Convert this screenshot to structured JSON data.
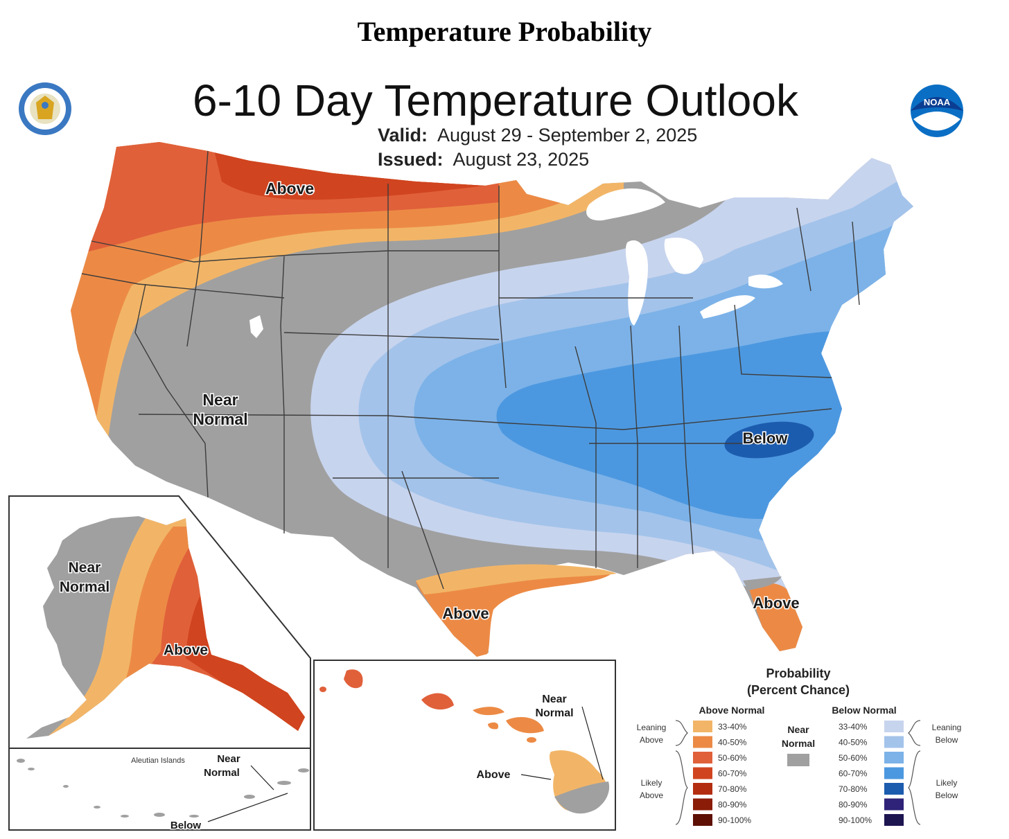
{
  "page_title": "Temperature Probability",
  "map_title": "6-10 Day Temperature Outlook",
  "valid_label": "Valid:",
  "valid_value": "August 29 - September 2, 2025",
  "issued_label": "Issued:",
  "issued_value": "August 23, 2025",
  "logos": {
    "left": "doc-seal-icon",
    "right": "noaa-logo-icon",
    "noaa_text": "NOAA"
  },
  "region_labels": {
    "pacific_northwest": "Above",
    "west": [
      "Near",
      "Normal"
    ],
    "southeast": "Below",
    "texas": "Above",
    "florida": "Above"
  },
  "alaska_labels": {
    "near_normal": [
      "Near",
      "Normal"
    ],
    "above": "Above"
  },
  "aleutian_labels": {
    "title": "Aleutian Islands",
    "near_normal": [
      "Near",
      "Normal"
    ],
    "below": "Below"
  },
  "hawaii_labels": {
    "near_normal": [
      "Near",
      "Normal"
    ],
    "above": "Above"
  },
  "legend": {
    "title_line1": "Probability",
    "title_line2": "(Percent Chance)",
    "above_header": "Above Normal",
    "below_header": "Below Normal",
    "near_header": [
      "Near",
      "Normal"
    ],
    "leaning_above": [
      "Leaning",
      "Above"
    ],
    "likely_above": [
      "Likely",
      "Above"
    ],
    "leaning_below": [
      "Leaning",
      "Below"
    ],
    "likely_below": [
      "Likely",
      "Below"
    ],
    "near_color": "#a0a0a0",
    "above": [
      {
        "range": "33-40%",
        "color": "#f2b567"
      },
      {
        "range": "40-50%",
        "color": "#ec8a45"
      },
      {
        "range": "50-60%",
        "color": "#e0603a"
      },
      {
        "range": "60-70%",
        "color": "#d0441f"
      },
      {
        "range": "70-80%",
        "color": "#b32e10"
      },
      {
        "range": "80-90%",
        "color": "#8a1c08"
      },
      {
        "range": "90-100%",
        "color": "#5e1004"
      }
    ],
    "below": [
      {
        "range": "33-40%",
        "color": "#c7d4ee"
      },
      {
        "range": "40-50%",
        "color": "#a3c3ea"
      },
      {
        "range": "50-60%",
        "color": "#7cb2e8"
      },
      {
        "range": "60-70%",
        "color": "#4c98e0"
      },
      {
        "range": "70-80%",
        "color": "#1c5cae"
      },
      {
        "range": "80-90%",
        "color": "#2e2378"
      },
      {
        "range": "90-100%",
        "color": "#1d1550"
      }
    ]
  }
}
